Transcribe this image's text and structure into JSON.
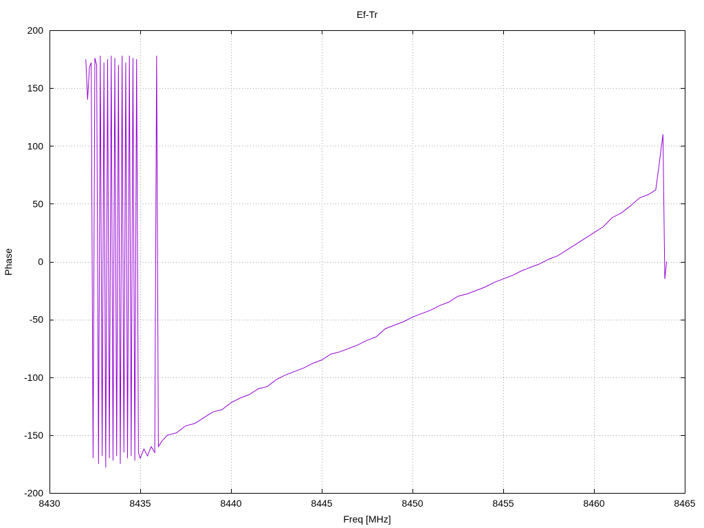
{
  "chart_data": {
    "type": "line",
    "title": "Ef-Tr",
    "xlabel": "Freq [MHz]",
    "ylabel": "Phase",
    "xlim": [
      8430,
      8465
    ],
    "ylim": [
      -200,
      200
    ],
    "xticks": [
      8430,
      8435,
      8440,
      8445,
      8450,
      8455,
      8460,
      8465
    ],
    "yticks": [
      -200,
      -150,
      -100,
      -50,
      0,
      50,
      100,
      150,
      200
    ],
    "grid": true,
    "line_color": "#9400d3",
    "series": [
      {
        "x": [
          8432.0,
          8432.1,
          8432.2,
          8432.3,
          8432.4,
          8432.5,
          8432.6,
          8432.7,
          8432.8,
          8432.9,
          8433.0,
          8433.1,
          8433.2,
          8433.3,
          8433.4,
          8433.5,
          8433.6,
          8433.7,
          8433.8,
          8433.9,
          8434.0,
          8434.1,
          8434.2,
          8434.3,
          8434.4,
          8434.5,
          8434.6,
          8434.7,
          8434.8,
          8434.9,
          8435.0,
          8435.2,
          8435.4,
          8435.6,
          8435.8,
          8435.9,
          8436.0,
          8436.2,
          8436.5,
          8437.0,
          8437.5,
          8438.0,
          8438.5,
          8439.0,
          8439.5,
          8440.0,
          8440.5,
          8441.0,
          8441.5,
          8442.0,
          8442.5,
          8443.0,
          8443.5,
          8444.0,
          8444.5,
          8445.0,
          8445.5,
          8446.0,
          8446.5,
          8447.0,
          8447.5,
          8448.0,
          8448.5,
          8449.0,
          8449.5,
          8450.0,
          8450.5,
          8451.0,
          8451.5,
          8452.0,
          8452.5,
          8453.0,
          8453.5,
          8454.0,
          8454.5,
          8455.0,
          8455.5,
          8456.0,
          8456.5,
          8457.0,
          8457.5,
          8458.0,
          8458.5,
          8459.0,
          8459.5,
          8460.0,
          8460.5,
          8461.0,
          8461.5,
          8462.0,
          8462.5,
          8463.0,
          8463.4,
          8463.6,
          8463.8,
          8463.9,
          8464.0
        ],
        "y": [
          175,
          140,
          168,
          172,
          -170,
          176,
          170,
          -175,
          178,
          -168,
          172,
          -178,
          175,
          -170,
          178,
          -172,
          176,
          -168,
          170,
          -175,
          178,
          -165,
          172,
          -170,
          178,
          -168,
          176,
          -172,
          175,
          -165,
          -170,
          -162,
          -168,
          -160,
          -165,
          178,
          -160,
          -155,
          -150,
          -148,
          -142,
          -140,
          -135,
          -130,
          -128,
          -122,
          -118,
          -115,
          -110,
          -108,
          -102,
          -98,
          -95,
          -92,
          -88,
          -85,
          -80,
          -78,
          -75,
          -72,
          -68,
          -65,
          -58,
          -55,
          -52,
          -48,
          -45,
          -42,
          -38,
          -35,
          -30,
          -28,
          -25,
          -22,
          -18,
          -15,
          -12,
          -8,
          -5,
          -2,
          2,
          5,
          10,
          15,
          20,
          25,
          30,
          38,
          42,
          48,
          55,
          58,
          62,
          85,
          110,
          -15,
          0
        ]
      }
    ]
  }
}
